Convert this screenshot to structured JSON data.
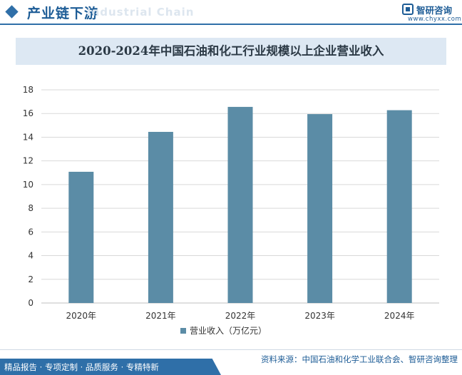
{
  "header": {
    "title": "产业链下游",
    "ghost_text": "Industrial Chain"
  },
  "logo": {
    "name": "智研咨询",
    "url": "www.chyxx.com"
  },
  "chart_data": {
    "type": "bar",
    "title": "2020-2024年中国石油和化工行业规模以上企业营业收入",
    "categories": [
      "2020年",
      "2021年",
      "2022年",
      "2023年",
      "2024年"
    ],
    "series": [
      {
        "name": "营业收入（万亿元）",
        "values": [
          11.08,
          14.45,
          16.56,
          15.95,
          16.28
        ]
      }
    ],
    "yticks": [
      "0",
      "2",
      "4",
      "6",
      "8",
      "10",
      "12",
      "14",
      "16",
      "18"
    ],
    "ylim": [
      0,
      18
    ],
    "grid": true,
    "legend_position": "bottom",
    "colors": {
      "bar": "#5b8ca6",
      "grid": "#d9d9d9",
      "axis": "#bfbfbf",
      "text": "#333333"
    }
  },
  "footer": {
    "left_text": "精品报告 · 专项定制 · 品质服务 · 专精特新",
    "source": "资料来源：中国石油和化学工业联合会、智研咨询整理"
  }
}
